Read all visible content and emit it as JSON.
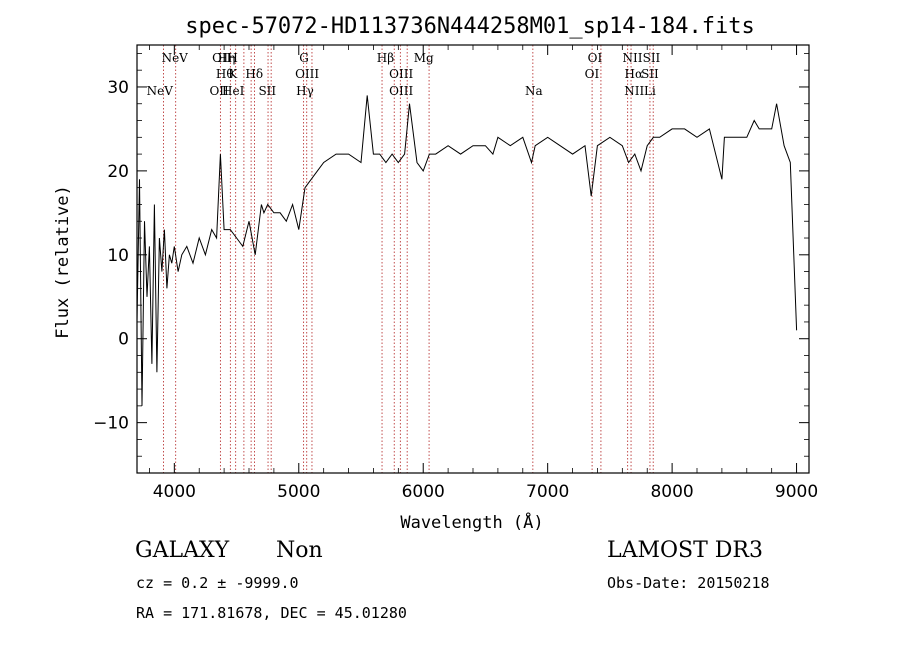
{
  "chart_data": {
    "type": "line",
    "title": "spec-57072-HD113736N444258M01_sp14-184.fits",
    "xlabel": "Wavelength (Å)",
    "ylabel": "Flux (relative)",
    "xlim": [
      3700,
      9100
    ],
    "ylim": [
      -16,
      35
    ],
    "xticks": [
      4000,
      5000,
      6000,
      7000,
      8000,
      9000
    ],
    "yticks": [
      -10,
      0,
      10,
      20,
      30
    ],
    "grid": false,
    "series": [
      {
        "x": [
          3700,
          3720,
          3740,
          3760,
          3780,
          3800,
          3820,
          3840,
          3860,
          3880,
          3900,
          3920,
          3940,
          3960,
          3980,
          4000,
          4030,
          4060,
          4100,
          4150,
          4200,
          4250,
          4300,
          4340,
          4370,
          4400,
          4450,
          4500,
          4550,
          4600,
          4650,
          4700,
          4720,
          4750,
          4800,
          4850,
          4900,
          4950,
          5000,
          5050,
          5100,
          5150,
          5200,
          5300,
          5400,
          5500,
          5550,
          5600,
          5650,
          5700,
          5750,
          5800,
          5850,
          5890,
          5950,
          6000,
          6050,
          6100,
          6200,
          6300,
          6400,
          6500,
          6560,
          6600,
          6700,
          6800,
          6870,
          6900,
          7000,
          7100,
          7200,
          7300,
          7350,
          7400,
          7500,
          7600,
          7650,
          7700,
          7750,
          7800,
          7850,
          7900,
          8000,
          8100,
          8200,
          8300,
          8400,
          8420,
          8500,
          8600,
          8660,
          8700,
          8800,
          8840,
          8900,
          8950,
          9000
        ],
        "y": [
          2,
          19,
          -8,
          14,
          5,
          11,
          -3,
          16,
          -4,
          12,
          8,
          13,
          6,
          10,
          9,
          11,
          8,
          10,
          11,
          9,
          12,
          10,
          13,
          12,
          22,
          13,
          13,
          12,
          11,
          14,
          10,
          16,
          15,
          16,
          15,
          15,
          14,
          16,
          13,
          18,
          19,
          20,
          21,
          22,
          22,
          21,
          29,
          22,
          22,
          21,
          22,
          21,
          22,
          28,
          21,
          20,
          22,
          22,
          23,
          22,
          23,
          23,
          22,
          24,
          23,
          24,
          21,
          23,
          24,
          23,
          22,
          23,
          17,
          23,
          24,
          23,
          21,
          22,
          20,
          23,
          24,
          24,
          25,
          25,
          24,
          25,
          19,
          24,
          24,
          24,
          26,
          25,
          25,
          28,
          23,
          21,
          1
        ]
      }
    ],
    "annotations": {
      "upper_row": [
        {
          "label": "NeV",
          "x": 4003
        },
        {
          "label": "OII",
          "x": 4381
        },
        {
          "label": "Hη",
          "x": 4419
        },
        {
          "label": "H",
          "x": 4468
        },
        {
          "label": "G",
          "x": 5042
        },
        {
          "label": "Hβ",
          "x": 5697
        },
        {
          "label": "Mg",
          "x": 6004
        },
        {
          "label": "OI",
          "x": 7380
        },
        {
          "label": "NII",
          "x": 7682
        },
        {
          "label": "SII",
          "x": 7834
        }
      ],
      "middle_row": [
        {
          "label": "Hθ",
          "x": 4405
        },
        {
          "label": "K",
          "x": 4469
        },
        {
          "label": "Hδ",
          "x": 4642
        },
        {
          "label": "OIII",
          "x": 5067
        },
        {
          "label": "OIII",
          "x": 5823
        },
        {
          "label": "OI",
          "x": 7356
        },
        {
          "label": "Hα",
          "x": 7692
        },
        {
          "label": "SII",
          "x": 7822
        }
      ],
      "lower_row": [
        {
          "label": "NeV",
          "x": 3883
        },
        {
          "label": "OII",
          "x": 4360
        },
        {
          "label": "HeI",
          "x": 4473
        },
        {
          "label": "SII",
          "x": 4747
        },
        {
          "label": "Hγ",
          "x": 5050
        },
        {
          "label": "OIII",
          "x": 5823
        },
        {
          "label": "Na",
          "x": 6889
        },
        {
          "label": "NII",
          "x": 7696
        },
        {
          "label": "Li",
          "x": 7822
        }
      ],
      "lines": [
        3913,
        4011,
        4370,
        4450,
        4493,
        4559,
        4617,
        4645,
        4753,
        4778,
        5039,
        5064,
        5106,
        5669,
        5767,
        5816,
        5871,
        6047,
        6881,
        7357,
        7428,
        7643,
        7670,
        7822,
        7848
      ]
    }
  },
  "footer": {
    "object_class": "GALAXY",
    "subclass": "Non",
    "survey": "LAMOST DR3",
    "cz": "cz = 0.2 ± -9999.0",
    "obs_date": "Obs-Date: 20150218",
    "coords": "RA = 171.81678, DEC =  45.01280"
  }
}
